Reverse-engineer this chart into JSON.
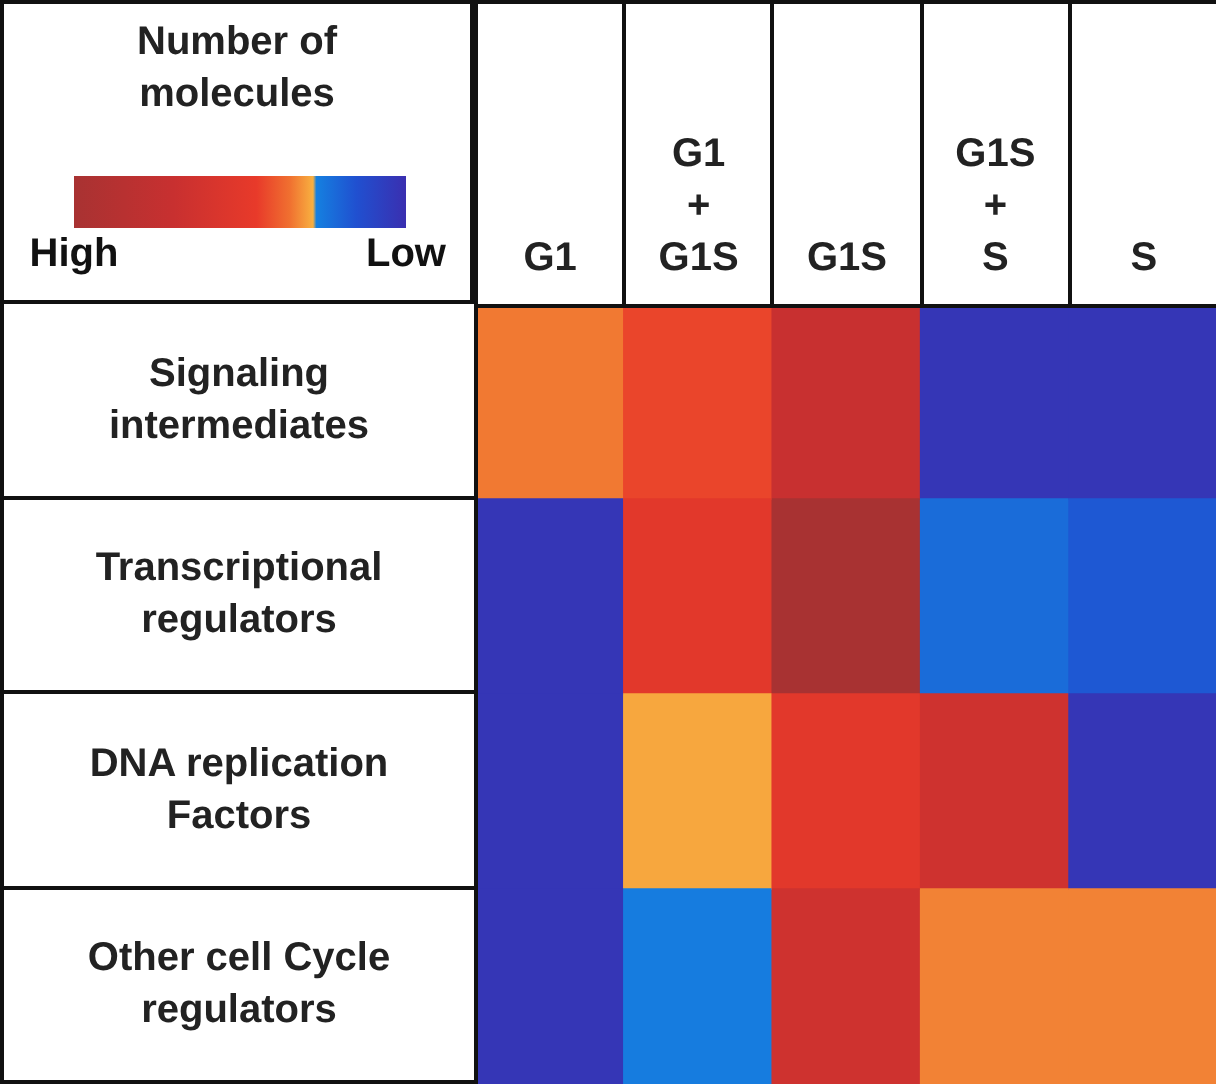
{
  "chart_data": {
    "type": "heatmap",
    "clabel": "Number of molecules",
    "categories": [
      "G1",
      "G1 + G1S",
      "G1S",
      "G1S + S",
      "S"
    ],
    "y_categories": [
      "Signaling intermediates",
      "Transcriptional regulators",
      "DNA replication Factors",
      "Other cell Cycle regulators"
    ],
    "cells": [
      [
        0.34,
        0.43,
        0.7,
        0.03,
        0.03
      ],
      [
        0.03,
        0.5,
        1.0,
        0.22,
        0.17
      ],
      [
        0.03,
        0.29,
        0.5,
        0.65,
        0.03
      ],
      [
        0.03,
        0.26,
        0.65,
        0.33,
        0.33
      ]
    ],
    "clim": [
      1,
      0
    ],
    "cticks": [
      {
        "value": 1,
        "label": "High"
      },
      {
        "value": 0,
        "label": "Low"
      }
    ]
  }
}
